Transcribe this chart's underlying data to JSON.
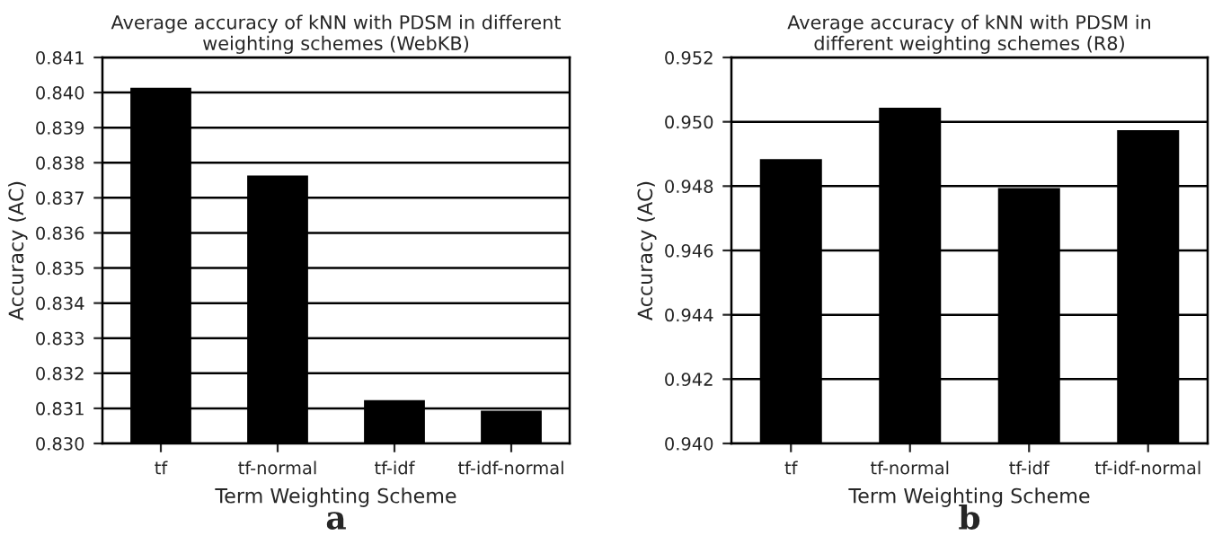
{
  "chart_data": [
    {
      "type": "bar",
      "title": "Average accuracy of kNN with PDSM in different\nweighting schemes (WebKB)",
      "xlabel": "Term Weighting Scheme",
      "ylabel": "Accuracy (AC)",
      "categories": [
        "tf",
        "tf-normal",
        "tf-idf",
        "tf-idf-normal"
      ],
      "values": [
        0.8401,
        0.8376,
        0.8312,
        0.8309
      ],
      "color": "#000000",
      "ylim": [
        0.83,
        0.841
      ],
      "yticks": [
        {
          "value": 0.83,
          "label": "0.830"
        },
        {
          "value": 0.831,
          "label": "0.831"
        },
        {
          "value": 0.832,
          "label": "0.832"
        },
        {
          "value": 0.833,
          "label": "0.833"
        },
        {
          "value": 0.834,
          "label": "0.834"
        },
        {
          "value": 0.835,
          "label": "0.835"
        },
        {
          "value": 0.836,
          "label": "0.836"
        },
        {
          "value": 0.837,
          "label": "0.837"
        },
        {
          "value": 0.838,
          "label": "0.838"
        },
        {
          "value": 0.839,
          "label": "0.839"
        },
        {
          "value": 0.84,
          "label": "0.840"
        },
        {
          "value": 0.841,
          "label": "0.841"
        }
      ],
      "grid": "y",
      "annotations": [
        "a"
      ]
    },
    {
      "type": "bar",
      "title": "Average accuracy of kNN with PDSM in\ndifferent weighting schemes (R8)",
      "xlabel": "Term Weighting Scheme",
      "ylabel": "Accuracy (AC)",
      "categories": [
        "tf",
        "tf-normal",
        "tf-idf",
        "tf-idf-normal"
      ],
      "values": [
        0.9488,
        0.9504,
        0.9479,
        0.9497
      ],
      "color": "#000000",
      "ylim": [
        0.94,
        0.952
      ],
      "yticks": [
        {
          "value": 0.94,
          "label": "0.940"
        },
        {
          "value": 0.942,
          "label": "0.942"
        },
        {
          "value": 0.944,
          "label": "0.944"
        },
        {
          "value": 0.946,
          "label": "0.946"
        },
        {
          "value": 0.948,
          "label": "0.948"
        },
        {
          "value": 0.95,
          "label": "0.950"
        },
        {
          "value": 0.952,
          "label": "0.952"
        }
      ],
      "grid": "y",
      "annotations": [
        "b"
      ]
    }
  ]
}
